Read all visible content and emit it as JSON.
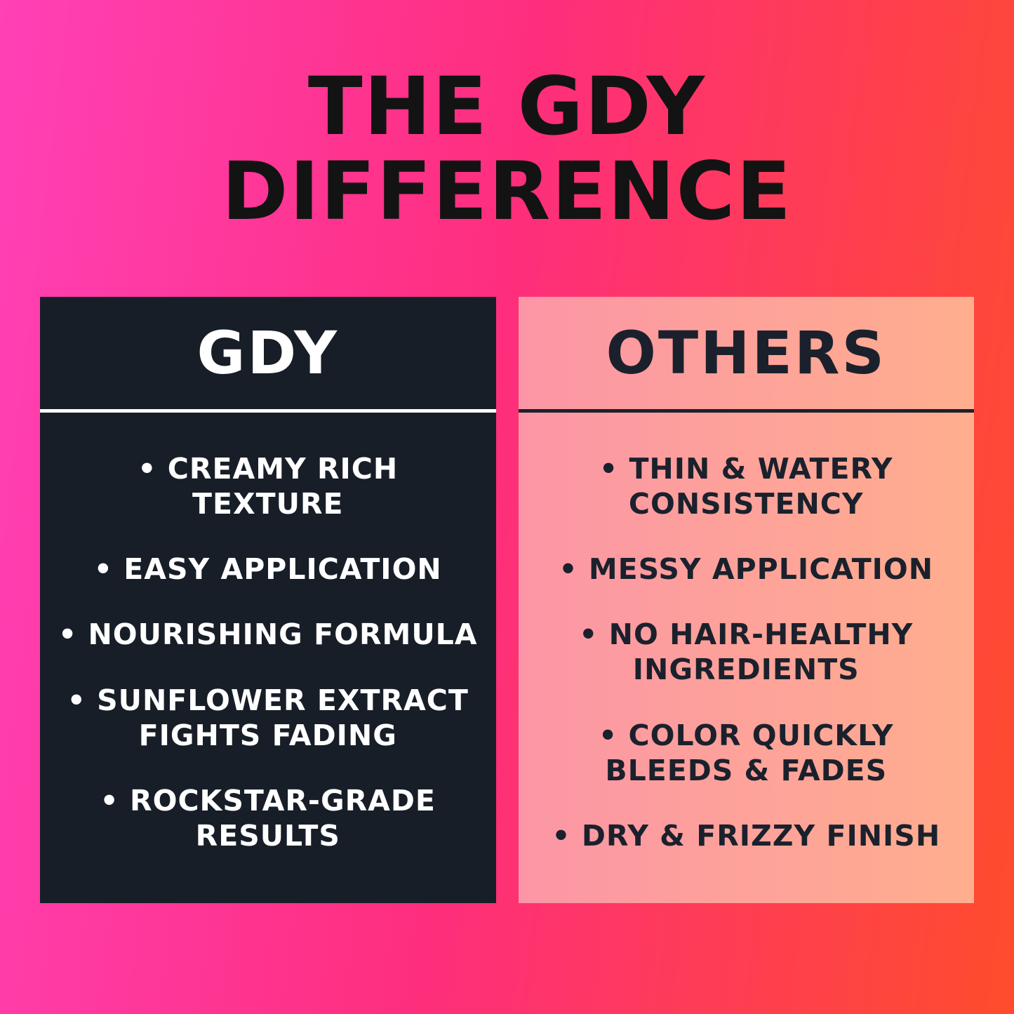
{
  "poster": {
    "title_line1": "THE GDY",
    "title_line2": "DIFFERENCE",
    "bullet": "•"
  },
  "columns": [
    {
      "header": "GDY",
      "items": [
        "CREAMY RICH\nTEXTURE",
        "EASY APPLICATION",
        "NOURISHING FORMULA",
        "SUNFLOWER EXTRACT\nFIGHTS FADING",
        "ROCKSTAR-GRADE\nRESULTS"
      ]
    },
    {
      "header": "OTHERS",
      "items": [
        "THIN & WATERY\nCONSISTENCY",
        "MESSY APPLICATION",
        "NO HAIR-HEALTHY\nINGREDIENTS",
        "COLOR QUICKLY\nBLEEDS & FADES",
        "DRY & FRIZZY FINISH"
      ]
    }
  ],
  "colors": {
    "background_gradient": [
      "#ff40b6",
      "#fe2e7c",
      "#ff4c2c"
    ],
    "title_text": "#131313",
    "gdy_card_bg": "#171e28",
    "gdy_card_text": "#ffffff",
    "gdy_divider": "#ffffff",
    "others_card_gradient": [
      "#fc96a6",
      "#ffae8e"
    ],
    "others_card_text": "#1b212c",
    "others_divider": "#1b212c"
  }
}
